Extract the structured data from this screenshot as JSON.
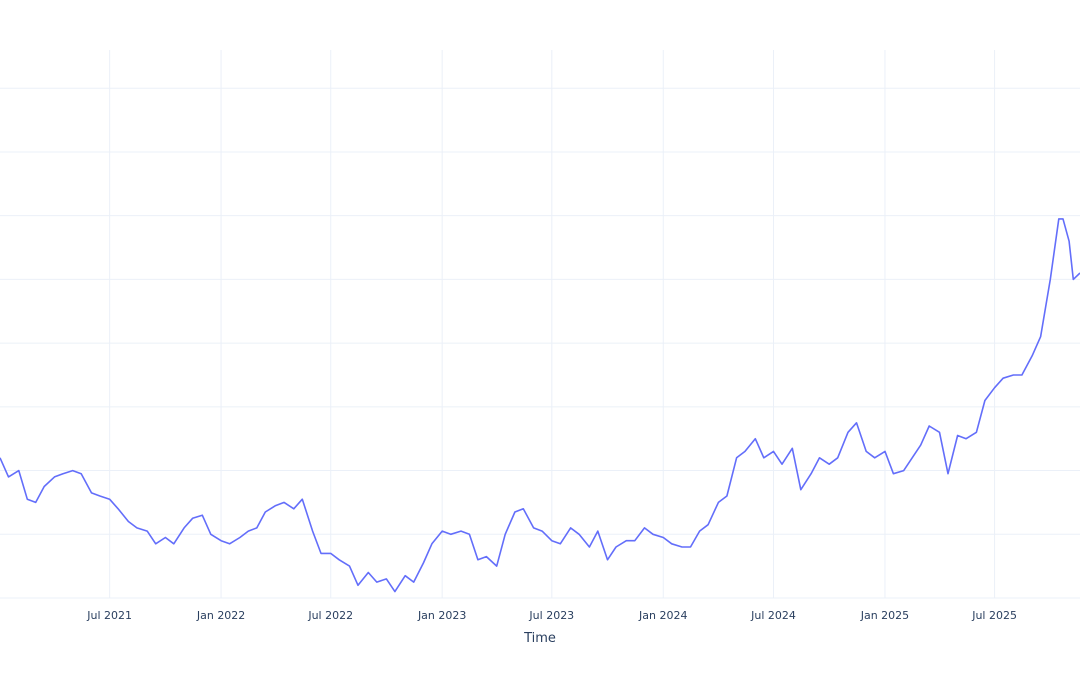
{
  "chart_data": {
    "type": "line",
    "title": "",
    "xlabel": "Time",
    "ylabel": "",
    "grid": true,
    "legend": "none",
    "line_color": "#636efa",
    "x_tick_labels": [
      "Jul 2021",
      "Jan 2022",
      "Jul 2022",
      "Jan 2023",
      "Jul 2023",
      "Jan 2024",
      "Jul 2024",
      "Jan 2025",
      "Jul 2025"
    ],
    "x_ticks": [
      "2021-07-01",
      "2022-01-01",
      "2022-07-01",
      "2023-01-01",
      "2023-07-01",
      "2024-01-01",
      "2024-07-01",
      "2025-01-01",
      "2025-07-01"
    ],
    "x_range": [
      "2021-01-01",
      "2025-11-19"
    ],
    "y_range": [
      0,
      8.6
    ],
    "y_gridlines": [
      0,
      1,
      2,
      3,
      4,
      5,
      6,
      7,
      8
    ],
    "x": [
      "2021-01-01",
      "2021-01-15",
      "2021-02-01",
      "2021-02-15",
      "2021-03-01",
      "2021-03-15",
      "2021-04-01",
      "2021-04-15",
      "2021-05-01",
      "2021-05-15",
      "2021-06-01",
      "2021-06-15",
      "2021-07-01",
      "2021-07-15",
      "2021-08-01",
      "2021-08-15",
      "2021-09-01",
      "2021-09-15",
      "2021-10-01",
      "2021-10-15",
      "2021-11-01",
      "2021-11-15",
      "2021-12-01",
      "2021-12-15",
      "2022-01-01",
      "2022-01-15",
      "2022-02-01",
      "2022-02-15",
      "2022-03-01",
      "2022-03-15",
      "2022-04-01",
      "2022-04-15",
      "2022-05-01",
      "2022-05-15",
      "2022-06-01",
      "2022-06-15",
      "2022-07-01",
      "2022-07-15",
      "2022-08-01",
      "2022-08-15",
      "2022-09-01",
      "2022-09-15",
      "2022-10-01",
      "2022-10-15",
      "2022-11-01",
      "2022-11-15",
      "2022-12-01",
      "2022-12-15",
      "2023-01-01",
      "2023-01-15",
      "2023-02-01",
      "2023-02-15",
      "2023-03-01",
      "2023-03-15",
      "2023-04-01",
      "2023-04-15",
      "2023-05-01",
      "2023-05-15",
      "2023-06-01",
      "2023-06-15",
      "2023-07-01",
      "2023-07-15",
      "2023-08-01",
      "2023-08-15",
      "2023-09-01",
      "2023-09-15",
      "2023-10-01",
      "2023-10-15",
      "2023-11-01",
      "2023-11-15",
      "2023-12-01",
      "2023-12-15",
      "2024-01-01",
      "2024-01-15",
      "2024-02-01",
      "2024-02-15",
      "2024-03-01",
      "2024-03-15",
      "2024-04-01",
      "2024-04-15",
      "2024-05-01",
      "2024-05-15",
      "2024-06-01",
      "2024-06-15",
      "2024-07-01",
      "2024-07-15",
      "2024-08-01",
      "2024-08-15",
      "2024-09-01",
      "2024-09-15",
      "2024-10-01",
      "2024-10-15",
      "2024-11-01",
      "2024-11-15",
      "2024-12-01",
      "2024-12-15",
      "2025-01-01",
      "2025-01-15",
      "2025-02-01",
      "2025-02-15",
      "2025-03-01",
      "2025-03-15",
      "2025-04-01",
      "2025-04-15",
      "2025-05-01",
      "2025-05-15",
      "2025-06-01",
      "2025-06-15",
      "2025-07-01",
      "2025-07-15",
      "2025-08-01",
      "2025-08-15",
      "2025-09-01",
      "2025-09-15",
      "2025-10-01",
      "2025-10-15",
      "2025-10-22",
      "2025-11-01",
      "2025-11-08",
      "2025-11-19"
    ],
    "y": [
      2.2,
      1.9,
      2.0,
      1.55,
      1.5,
      1.75,
      1.9,
      1.95,
      2.0,
      1.95,
      1.65,
      1.6,
      1.55,
      1.4,
      1.2,
      1.1,
      1.05,
      0.85,
      0.95,
      0.85,
      1.1,
      1.25,
      1.3,
      1.0,
      0.9,
      0.85,
      0.95,
      1.05,
      1.1,
      1.35,
      1.45,
      1.5,
      1.4,
      1.55,
      1.05,
      0.7,
      0.7,
      0.6,
      0.5,
      0.2,
      0.4,
      0.25,
      0.3,
      0.1,
      0.35,
      0.25,
      0.55,
      0.85,
      1.05,
      1.0,
      1.05,
      1.0,
      0.6,
      0.65,
      0.5,
      1.0,
      1.35,
      1.4,
      1.1,
      1.05,
      0.9,
      0.85,
      1.1,
      1.0,
      0.8,
      1.05,
      0.6,
      0.8,
      0.9,
      0.9,
      1.1,
      1.0,
      0.95,
      0.85,
      0.8,
      0.8,
      1.05,
      1.15,
      1.5,
      1.6,
      2.2,
      2.3,
      2.5,
      2.2,
      2.3,
      2.1,
      2.35,
      1.7,
      1.95,
      2.2,
      2.1,
      2.2,
      2.6,
      2.75,
      2.3,
      2.2,
      2.3,
      1.95,
      2.0,
      2.2,
      2.4,
      2.7,
      2.6,
      1.95,
      2.55,
      2.5,
      2.6,
      3.1,
      3.3,
      3.45,
      3.5,
      3.5,
      3.8,
      4.1,
      5.0,
      5.95,
      5.95,
      5.6,
      5.0,
      5.1
    ]
  }
}
